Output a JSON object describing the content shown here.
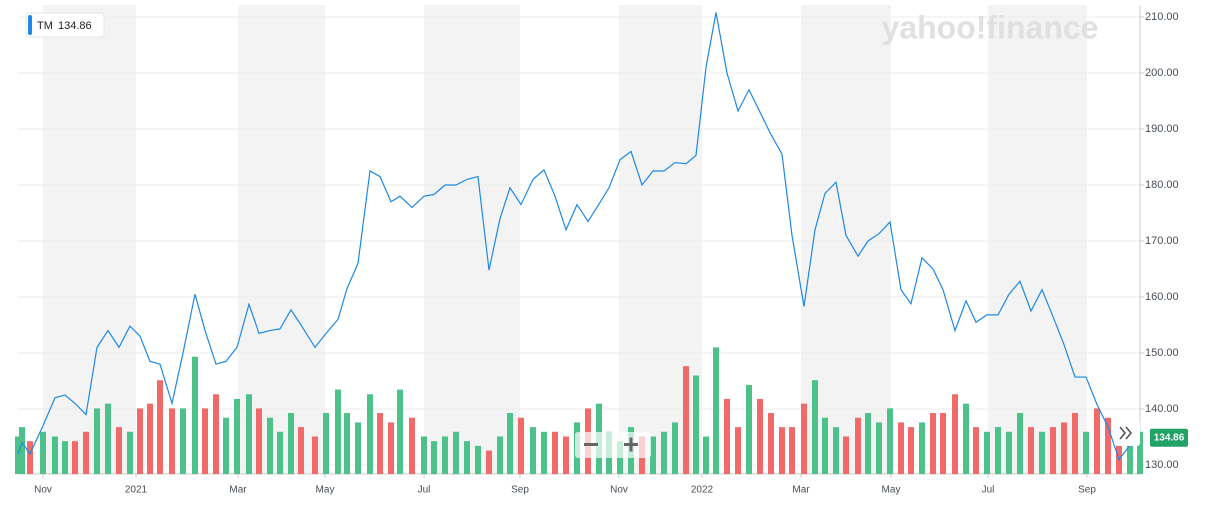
{
  "chart_data": {
    "type": "line",
    "watermark": "yahoo!finance",
    "x": [
      0,
      0.4,
      1.2,
      2.5,
      3.7,
      4.7,
      5.7,
      6.8,
      7.9,
      9,
      10.1,
      11.2,
      12.2,
      13.2,
      14.2,
      15.4,
      16.5,
      17.7,
      18.7,
      19.8,
      20.8,
      21.9,
      23.1,
      24.1,
      25.2,
      26.2,
      27.3,
      28.3,
      29.7,
      30.8,
      32,
      32.9,
      34,
      35.2,
      36.2,
      37.3,
      38.2,
      39.4,
      40.6,
      41.6,
      42.7,
      43.8,
      44.9,
      46,
      47.1,
      48.2,
      49.2,
      50.3,
      51.5,
      52.6,
      53.7,
      54.8,
      55.9,
      57,
      58.1,
      59.1,
      60.2,
      61.3,
      62.4,
      63.5,
      64.6,
      65.7,
      66.8,
      67.8,
      68.8,
      69.8,
      70.9,
      72,
      73.1,
      74.2,
      75.3,
      76.4,
      77.4,
      78.6,
      79.7,
      80.7,
      81.8,
      82.8,
      84,
      85,
      86.1,
      87.2,
      88.3,
      89.3,
      90.4,
      91.5,
      92.5,
      93.7,
      94.8,
      95.8,
      96.9,
      98,
      99.1,
      100.2,
      101.3,
      102.4,
      103.5,
      104.6,
      105.7,
      106.8,
      107.9,
      109,
      110.1,
      111.2,
      112.2
    ],
    "series": [
      {
        "name": "TM",
        "color": "#1e88e5",
        "values": [
          132,
          134,
          132,
          137,
          142,
          142.5,
          141,
          139,
          151,
          154,
          151,
          154.8,
          153,
          148.5,
          148,
          141,
          150,
          160.5,
          154,
          148,
          148.5,
          151,
          158.7,
          153.5,
          154,
          154.3,
          157.7,
          155,
          151,
          153.5,
          156,
          161.5,
          166,
          182.5,
          181.5,
          177,
          178,
          176,
          178,
          178.3,
          180,
          180,
          181,
          181.5,
          164.8,
          174,
          179.5,
          176.5,
          181,
          182.7,
          178,
          172,
          176.5,
          173.5,
          176.6,
          179.5,
          184.5,
          186,
          180,
          182.5,
          182.5,
          184,
          183.8,
          185.3,
          201,
          210.8,
          200,
          193.2,
          197,
          193,
          189,
          185.5,
          171,
          158.3,
          172,
          178.5,
          180.5,
          171,
          167.3,
          170,
          171.3,
          173.4,
          161.3,
          158.8,
          167,
          165,
          161.3,
          154,
          159.3,
          155.5,
          156.8,
          156.8,
          160.5,
          162.8,
          157.5,
          161.3,
          156.5,
          151.5,
          145.7,
          145.7,
          140.8,
          136.8,
          131,
          133.5,
          134.86
        ]
      }
    ],
    "volume": {
      "up_color": "#4cc28a",
      "down_color": "#f06a6a",
      "values": [
        8,
        10,
        7,
        9,
        8,
        7,
        7,
        9,
        14,
        15,
        10,
        9,
        14,
        15,
        20,
        14,
        14,
        25,
        14,
        17,
        12,
        16,
        17,
        14,
        12,
        9,
        13,
        10,
        8,
        13,
        18,
        13,
        11,
        17,
        13,
        11,
        18,
        12,
        8,
        7,
        8,
        9,
        7,
        6,
        5,
        8,
        13,
        12,
        10,
        9,
        9,
        8,
        11,
        14,
        15,
        9,
        7,
        10,
        8,
        8,
        9,
        11,
        23,
        21,
        8,
        27,
        16,
        10,
        19,
        16,
        13,
        10,
        10,
        15,
        20,
        12,
        10,
        8,
        12,
        13,
        11,
        14,
        11,
        10,
        11,
        13,
        13,
        17,
        15,
        10,
        9,
        10,
        9,
        13,
        10,
        9,
        10,
        11,
        13,
        9,
        14,
        12,
        9,
        10,
        9
      ]
    },
    "xlim": [
      0,
      112.2
    ],
    "xticks": [
      {
        "value": 2.5,
        "label": "Nov"
      },
      {
        "value": 11.8,
        "label": "2021"
      },
      {
        "value": 22,
        "label": "Mar"
      },
      {
        "value": 30.7,
        "label": "May"
      },
      {
        "value": 40.6,
        "label": "Jul"
      },
      {
        "value": 50.2,
        "label": "Sep"
      },
      {
        "value": 60.1,
        "label": "Nov"
      },
      {
        "value": 68.4,
        "label": "2022"
      },
      {
        "value": 78.3,
        "label": "Mar"
      },
      {
        "value": 87.3,
        "label": "May"
      },
      {
        "value": 97,
        "label": "Jul"
      },
      {
        "value": 106.9,
        "label": "Sep"
      }
    ],
    "ylim": [
      128.39,
      212.14
    ],
    "yticks": [
      {
        "value": 130,
        "label": "130.00"
      },
      {
        "value": 140,
        "label": "140.00"
      },
      {
        "value": 150,
        "label": "150.00"
      },
      {
        "value": 160,
        "label": "160.00"
      },
      {
        "value": 170,
        "label": "170.00"
      },
      {
        "value": 180,
        "label": "180.00"
      },
      {
        "value": 190,
        "label": "190.00"
      },
      {
        "value": 200,
        "label": "200.00"
      },
      {
        "value": 210,
        "label": "210.00"
      }
    ],
    "y2lim": [
      0,
      100
    ],
    "grid": true,
    "shade_color": "#f3f3f3",
    "tag_color": "#21a366"
  }
}
